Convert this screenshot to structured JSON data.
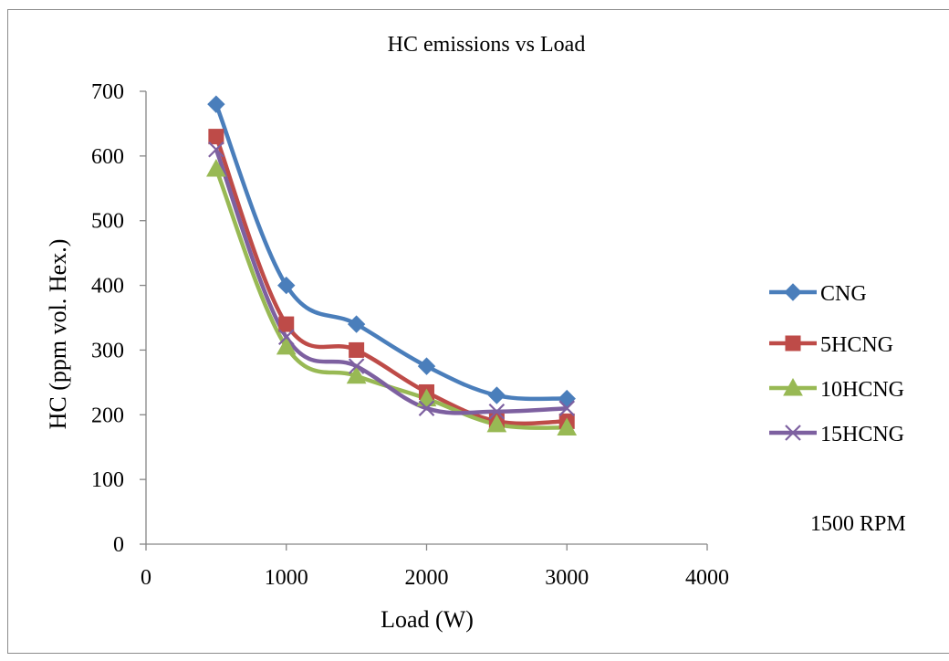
{
  "chart_data": {
    "type": "line",
    "title": "HC emissions vs Load",
    "xlabel": "Load (W)",
    "ylabel": "HC (ppm vol. Hex.)",
    "xlim": [
      0,
      4000
    ],
    "ylim": [
      0,
      700
    ],
    "xticks": [
      0,
      1000,
      2000,
      3000,
      4000
    ],
    "yticks": [
      0,
      100,
      200,
      300,
      400,
      500,
      600,
      700
    ],
    "x": [
      500,
      1000,
      1500,
      2000,
      2500,
      3000
    ],
    "series": [
      {
        "name": "CNG",
        "values": [
          680,
          400,
          340,
          275,
          230,
          225
        ],
        "color": "#4a7ebb",
        "marker": "diamond"
      },
      {
        "name": "5HCNG",
        "values": [
          630,
          340,
          300,
          235,
          190,
          190
        ],
        "color": "#be4b48",
        "marker": "square"
      },
      {
        "name": "10HCNG",
        "values": [
          580,
          305,
          260,
          225,
          185,
          180
        ],
        "color": "#98b954",
        "marker": "triangle"
      },
      {
        "name": "15HCNG",
        "values": [
          610,
          320,
          275,
          210,
          205,
          210
        ],
        "color": "#7d60a0",
        "marker": "x"
      }
    ],
    "annotation": "1500 RPM",
    "grid": false,
    "legend_position": "right"
  }
}
